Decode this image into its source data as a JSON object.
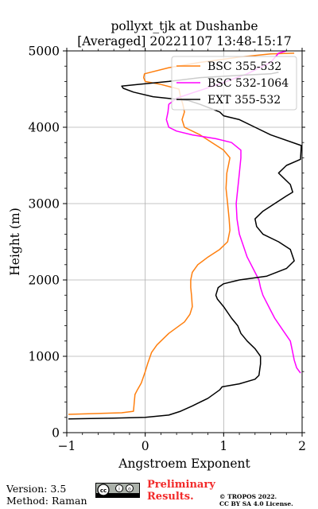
{
  "chart_data": {
    "type": "line",
    "title": "pollyxt_tjk at Dushanbe",
    "subtitle": "[Averaged] 20221107 13:48-15:17",
    "xlabel": "Angstroem Exponent",
    "ylabel": "Height (m)",
    "xlim": [
      -1,
      2
    ],
    "ylim": [
      0,
      5000
    ],
    "xticks": [
      "−1",
      "0",
      "1",
      "2"
    ],
    "yticks": [
      "0",
      "1000",
      "2000",
      "3000",
      "4000",
      "5000"
    ],
    "xtick_values": [
      -1,
      0,
      1,
      2
    ],
    "ytick_values": [
      0,
      1000,
      2000,
      3000,
      4000,
      5000
    ],
    "grid": true,
    "legend_position": "top-right",
    "series": [
      {
        "name": "BSC 355-532",
        "color": "#ff7f0e",
        "points": [
          [
            -0.98,
            240
          ],
          [
            -0.3,
            260
          ],
          [
            -0.15,
            280
          ],
          [
            -0.14,
            400
          ],
          [
            -0.13,
            500
          ],
          [
            -0.1,
            560
          ],
          [
            -0.05,
            650
          ],
          [
            0.0,
            800
          ],
          [
            0.03,
            900
          ],
          [
            0.08,
            1050
          ],
          [
            0.15,
            1150
          ],
          [
            0.3,
            1300
          ],
          [
            0.5,
            1450
          ],
          [
            0.57,
            1550
          ],
          [
            0.6,
            1650
          ],
          [
            0.59,
            1800
          ],
          [
            0.58,
            1900
          ],
          [
            0.58,
            2000
          ],
          [
            0.6,
            2100
          ],
          [
            0.67,
            2200
          ],
          [
            0.8,
            2300
          ],
          [
            0.95,
            2400
          ],
          [
            1.05,
            2500
          ],
          [
            1.08,
            2650
          ],
          [
            1.07,
            2800
          ],
          [
            1.05,
            3000
          ],
          [
            1.03,
            3200
          ],
          [
            1.04,
            3400
          ],
          [
            1.06,
            3500
          ],
          [
            1.08,
            3600
          ],
          [
            1.0,
            3700
          ],
          [
            0.85,
            3800
          ],
          [
            0.7,
            3900
          ],
          [
            0.5,
            4000
          ],
          [
            0.47,
            4100
          ],
          [
            0.5,
            4200
          ],
          [
            0.48,
            4300
          ],
          [
            0.45,
            4400
          ],
          [
            0.43,
            4500
          ],
          [
            0.2,
            4560
          ],
          [
            0.0,
            4600
          ],
          [
            -0.02,
            4650
          ],
          [
            -0.01,
            4700
          ],
          [
            0.3,
            4780
          ],
          [
            0.7,
            4850
          ],
          [
            1.2,
            4920
          ],
          [
            1.6,
            4960
          ],
          [
            1.9,
            4970
          ]
        ]
      },
      {
        "name": "BSC 532-1064",
        "color": "#ff00ff",
        "points": [
          [
            1.98,
            780
          ],
          [
            1.93,
            850
          ],
          [
            1.9,
            950
          ],
          [
            1.88,
            1050
          ],
          [
            1.85,
            1200
          ],
          [
            1.75,
            1350
          ],
          [
            1.65,
            1500
          ],
          [
            1.6,
            1600
          ],
          [
            1.55,
            1700
          ],
          [
            1.5,
            1800
          ],
          [
            1.47,
            1900
          ],
          [
            1.45,
            2000
          ],
          [
            1.4,
            2100
          ],
          [
            1.35,
            2200
          ],
          [
            1.3,
            2300
          ],
          [
            1.25,
            2450
          ],
          [
            1.2,
            2600
          ],
          [
            1.17,
            2800
          ],
          [
            1.16,
            3000
          ],
          [
            1.18,
            3200
          ],
          [
            1.2,
            3400
          ],
          [
            1.22,
            3600
          ],
          [
            1.22,
            3700
          ],
          [
            1.1,
            3800
          ],
          [
            0.9,
            3850
          ],
          [
            0.6,
            3900
          ],
          [
            0.4,
            3950
          ],
          [
            0.3,
            4000
          ],
          [
            0.27,
            4100
          ],
          [
            0.29,
            4200
          ],
          [
            0.3,
            4300
          ],
          [
            0.4,
            4380
          ],
          [
            0.6,
            4450
          ],
          [
            0.9,
            4550
          ],
          [
            1.3,
            4700
          ],
          [
            1.6,
            4850
          ],
          [
            1.7,
            4970
          ],
          [
            1.8,
            5000
          ]
        ]
      },
      {
        "name": "EXT 355-532",
        "color": "#000000",
        "points": [
          [
            -0.98,
            180
          ],
          [
            -0.4,
            190
          ],
          [
            0.0,
            200
          ],
          [
            0.3,
            230
          ],
          [
            0.45,
            280
          ],
          [
            0.6,
            350
          ],
          [
            0.8,
            450
          ],
          [
            0.95,
            560
          ],
          [
            0.98,
            600
          ],
          [
            1.2,
            640
          ],
          [
            1.4,
            700
          ],
          [
            1.45,
            750
          ],
          [
            1.47,
            900
          ],
          [
            1.47,
            1000
          ],
          [
            1.4,
            1100
          ],
          [
            1.3,
            1200
          ],
          [
            1.22,
            1300
          ],
          [
            1.18,
            1400
          ],
          [
            1.1,
            1500
          ],
          [
            1.0,
            1650
          ],
          [
            0.92,
            1750
          ],
          [
            0.9,
            1800
          ],
          [
            0.93,
            1900
          ],
          [
            1.0,
            1950
          ],
          [
            1.2,
            2000
          ],
          [
            1.55,
            2050
          ],
          [
            1.8,
            2150
          ],
          [
            1.9,
            2250
          ],
          [
            1.85,
            2400
          ],
          [
            1.7,
            2500
          ],
          [
            1.5,
            2600
          ],
          [
            1.42,
            2700
          ],
          [
            1.4,
            2800
          ],
          [
            1.5,
            2900
          ],
          [
            1.65,
            3000
          ],
          [
            1.8,
            3100
          ],
          [
            1.88,
            3150
          ],
          [
            1.85,
            3250
          ],
          [
            1.75,
            3350
          ],
          [
            1.7,
            3400
          ],
          [
            1.8,
            3500
          ],
          [
            1.98,
            3580
          ],
          [
            1.99,
            3760
          ],
          [
            1.6,
            3900
          ],
          [
            1.4,
            4000
          ],
          [
            1.2,
            4100
          ],
          [
            1.0,
            4150
          ],
          [
            0.95,
            4200
          ],
          [
            0.7,
            4300
          ],
          [
            0.55,
            4350
          ],
          [
            0.1,
            4400
          ],
          [
            -0.15,
            4460
          ],
          [
            -0.28,
            4510
          ],
          [
            -0.3,
            4540
          ],
          [
            -0.1,
            4560
          ],
          [
            0.3,
            4600
          ],
          [
            0.7,
            4650
          ],
          [
            1.2,
            4680
          ],
          [
            1.6,
            4700
          ],
          [
            1.7,
            4720
          ]
        ]
      }
    ]
  },
  "footer": {
    "version": "Version: 3.5",
    "method": "Method: Raman",
    "preliminary_line1": "Preliminary",
    "preliminary_line2": "Results.",
    "copyright_line1": "© TROPOS 2022.",
    "copyright_line2": "CC BY SA 4.0 License.",
    "license_badge_icon": "cc-by-sa-icon"
  }
}
